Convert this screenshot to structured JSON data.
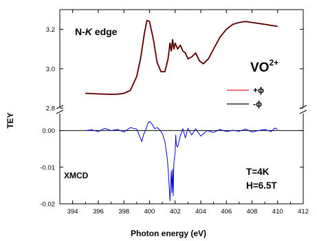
{
  "chart_data": {
    "type": "line",
    "xlabel": "Photon energy  (eV)",
    "ylabel": "TEY",
    "xlim": [
      393,
      412
    ],
    "x_ticks": [
      "394",
      "396",
      "398",
      "400",
      "402",
      "404",
      "406",
      "408",
      "410",
      "412"
    ],
    "panels": [
      {
        "name": "TEY",
        "ylim": [
          2.8,
          3.3
        ],
        "y_ticks": [
          "2.8",
          "3.0",
          "3.2"
        ],
        "series": [
          {
            "name": "+ϕ",
            "color": "#e02020",
            "x": [
              395.0,
              396.0,
              397.0,
              397.5,
              398.0,
              398.5,
              399.0,
              399.3,
              399.6,
              399.8,
              400.0,
              400.3,
              400.6,
              400.9,
              401.2,
              401.45,
              401.6,
              401.7,
              401.8,
              401.9,
              402.0,
              402.2,
              402.4,
              402.6,
              402.8,
              403.0,
              403.3,
              403.6,
              403.9,
              404.2,
              404.6,
              405.0,
              405.5,
              406.0,
              406.5,
              407.0,
              407.5,
              408.0,
              408.5,
              409.0,
              409.5,
              410.0
            ],
            "y": [
              2.875,
              2.872,
              2.87,
              2.871,
              2.875,
              2.89,
              2.96,
              3.05,
              3.18,
              3.245,
              3.24,
              3.15,
              3.03,
              2.985,
              2.985,
              3.05,
              3.13,
              3.09,
              3.148,
              3.1,
              3.13,
              3.1,
              3.12,
              3.09,
              3.08,
              3.05,
              3.06,
              3.08,
              3.04,
              3.025,
              3.05,
              3.1,
              3.16,
              3.2,
              3.225,
              3.235,
              3.24,
              3.235,
              3.23,
              3.225,
              3.22,
              3.215
            ]
          },
          {
            "name": "-ϕ",
            "color": "#000000",
            "x": [
              395.0,
              396.0,
              397.0,
              397.5,
              398.0,
              398.5,
              399.0,
              399.3,
              399.6,
              399.8,
              400.0,
              400.3,
              400.6,
              400.9,
              401.2,
              401.45,
              401.6,
              401.7,
              401.8,
              401.9,
              402.0,
              402.2,
              402.4,
              402.6,
              402.8,
              403.0,
              403.3,
              403.6,
              403.9,
              404.2,
              404.6,
              405.0,
              405.5,
              406.0,
              406.5,
              407.0,
              407.5,
              408.0,
              408.5,
              409.0,
              409.5,
              410.0
            ],
            "y": [
              2.875,
              2.872,
              2.87,
              2.871,
              2.875,
              2.89,
              2.96,
              3.05,
              3.18,
              3.245,
              3.24,
              3.15,
              3.03,
              2.985,
              2.985,
              3.05,
              3.13,
              3.09,
              3.148,
              3.1,
              3.13,
              3.1,
              3.12,
              3.09,
              3.08,
              3.05,
              3.06,
              3.08,
              3.04,
              3.025,
              3.05,
              3.1,
              3.16,
              3.2,
              3.225,
              3.235,
              3.24,
              3.235,
              3.23,
              3.225,
              3.22,
              3.215
            ]
          }
        ]
      },
      {
        "name": "XMCD",
        "ylim": [
          -0.02,
          0.005
        ],
        "y_ticks": [
          "-0.02",
          "-0.01",
          "0.00"
        ],
        "zero_line": true,
        "series": [
          {
            "name": "XMCD",
            "color": "#0000e0",
            "x": [
              395.0,
              395.5,
              396.0,
              396.5,
              397.0,
              397.5,
              398.0,
              398.5,
              399.0,
              399.2,
              399.4,
              399.55,
              399.7,
              399.85,
              400.0,
              400.2,
              400.4,
              400.6,
              400.8,
              401.0,
              401.2,
              401.4,
              401.5,
              401.6,
              401.7,
              401.75,
              401.8,
              401.85,
              401.9,
              402.0,
              402.05,
              402.1,
              402.2,
              402.4,
              402.6,
              402.8,
              403.0,
              403.3,
              403.6,
              404.0,
              404.5,
              405.0,
              405.5,
              406.0,
              406.5,
              407.0,
              407.5,
              408.0,
              408.5,
              409.0,
              409.5,
              409.8,
              410.0
            ],
            "y": [
              0.0,
              0.0002,
              -0.0003,
              0.0006,
              0.0,
              0.0003,
              -0.0004,
              0.0008,
              0.0004,
              -0.0012,
              -0.003,
              -0.001,
              0.0001,
              0.0018,
              0.0025,
              0.0018,
              0.0005,
              0.0008,
              0.0002,
              -0.0008,
              -0.003,
              -0.008,
              -0.013,
              -0.0192,
              -0.011,
              -0.017,
              -0.0105,
              -0.0178,
              -0.009,
              -0.006,
              -0.0012,
              -0.004,
              -0.0045,
              -0.0015,
              0.0005,
              -0.002,
              0.0006,
              -0.0012,
              0.0005,
              -0.0015,
              0.0,
              -0.0005,
              0.0003,
              -0.0003,
              0.0001,
              -0.0002,
              0.0004,
              -0.0004,
              0.0,
              0.0003,
              -0.0003,
              0.0007,
              0.0003
            ]
          }
        ]
      }
    ],
    "annotations": {
      "edge_prefix": "N-",
      "edge_italic": "K",
      "edge_suffix": " edge",
      "compound": "VO",
      "compound_sup": "2+",
      "xmcd_label": "XMCD",
      "temp": "T=4K",
      "field": "H=6.5T"
    },
    "legend": {
      "placement": "right-middle",
      "entries": [
        {
          "label": "+ϕ",
          "color": "#e02020"
        },
        {
          "label": "-ϕ",
          "color": "#000000"
        }
      ]
    },
    "grid": false
  }
}
